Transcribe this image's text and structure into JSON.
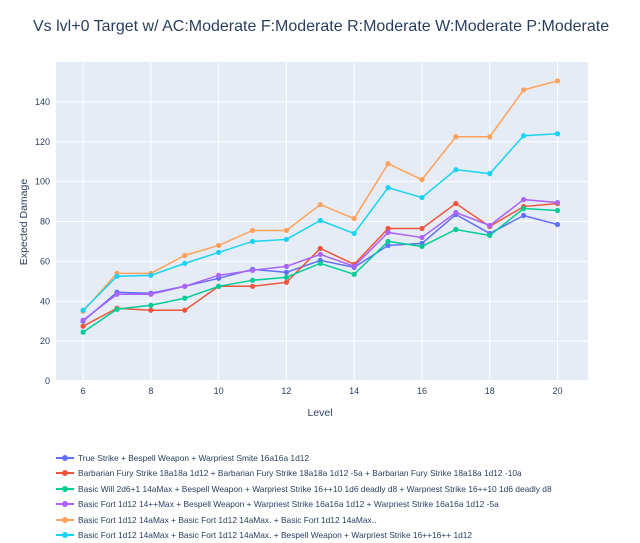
{
  "chart_data": {
    "type": "line",
    "title": "Vs lvl+0 Target w/ AC:Moderate F:Moderate R:Moderate W:Moderate P:Moderate",
    "xlabel": "Level",
    "ylabel": "Expected Damage",
    "xlim": [
      5.2,
      20.9
    ],
    "ylim": [
      0,
      160
    ],
    "xticks": [
      6,
      8,
      10,
      12,
      14,
      16,
      18,
      20
    ],
    "yticks": [
      0,
      20,
      40,
      60,
      80,
      100,
      120,
      140
    ],
    "grid": true,
    "legend_position": "bottom",
    "background": "#e5ecf6",
    "x": [
      6,
      7,
      8,
      9,
      10,
      11,
      12,
      13,
      14,
      15,
      16,
      17,
      18,
      19,
      20
    ],
    "series": [
      {
        "name": "True Strike + Bespell Weapon + Warpriest Smite 16a16a 1d12",
        "color": "#636efa",
        "values": [
          30,
          44.5,
          44,
          47.5,
          51.5,
          56,
          54.5,
          60.5,
          57,
          68,
          69,
          83.5,
          74,
          83,
          78.5
        ]
      },
      {
        "name": "Barbarian Fury Strike 18a18a 1d12 + Barbarian Fury Strike 18a18a 1d12 -5a + Barbarian Fury Strike 18a18a 1d12 -10a",
        "color": "#ef553b",
        "values": [
          27.5,
          36.5,
          35.5,
          35.5,
          47.5,
          47.5,
          49.5,
          66.5,
          58.5,
          76.5,
          76.5,
          89,
          77.5,
          87.5,
          89
        ]
      },
      {
        "name": "Basic Will 2d6+1 14aMax + Bespell Weapon + Warpriest Strike 16++10 1d6 deadly d8 + Warpriest Strike 16++10 1d6 deadly d8",
        "color": "#00cc96",
        "values": [
          24.5,
          36,
          38,
          41.5,
          47.5,
          50.5,
          52,
          59,
          53.5,
          70,
          67.5,
          76,
          73,
          86.5,
          85.5
        ]
      },
      {
        "name": "Basic Fort 1d12 14++Max + Bespell Weapon + Warpriest Strike 16a16a 1d12 + Warpriest Strike 16a16a 1d12 -5a",
        "color": "#ab63fa",
        "values": [
          30.5,
          43.5,
          43.5,
          47.5,
          53,
          55.5,
          57.5,
          63.5,
          57.5,
          74.5,
          72,
          84.5,
          78,
          91,
          89.5
        ]
      },
      {
        "name": "Basic Fort 1d12 14aMax + Basic Fort 1d12 14aMax. + Basic Fort 1d12 14aMax..",
        "color": "#ffa15a",
        "values": [
          35,
          54,
          54,
          63,
          68,
          75.5,
          75.5,
          88.5,
          81.5,
          109,
          101,
          122.5,
          122.5,
          146,
          150.5
        ]
      },
      {
        "name": "Basic Fort 1d12 14aMax + Basic Fort 1d12 14aMax. + Bespell Weapon + Warpriest Strike 16++16++ 1d12",
        "color": "#19d3f3",
        "values": [
          35.5,
          52.5,
          53,
          59,
          64.5,
          70,
          71,
          80.5,
          74,
          97,
          92,
          106,
          104,
          123,
          124
        ]
      }
    ]
  }
}
